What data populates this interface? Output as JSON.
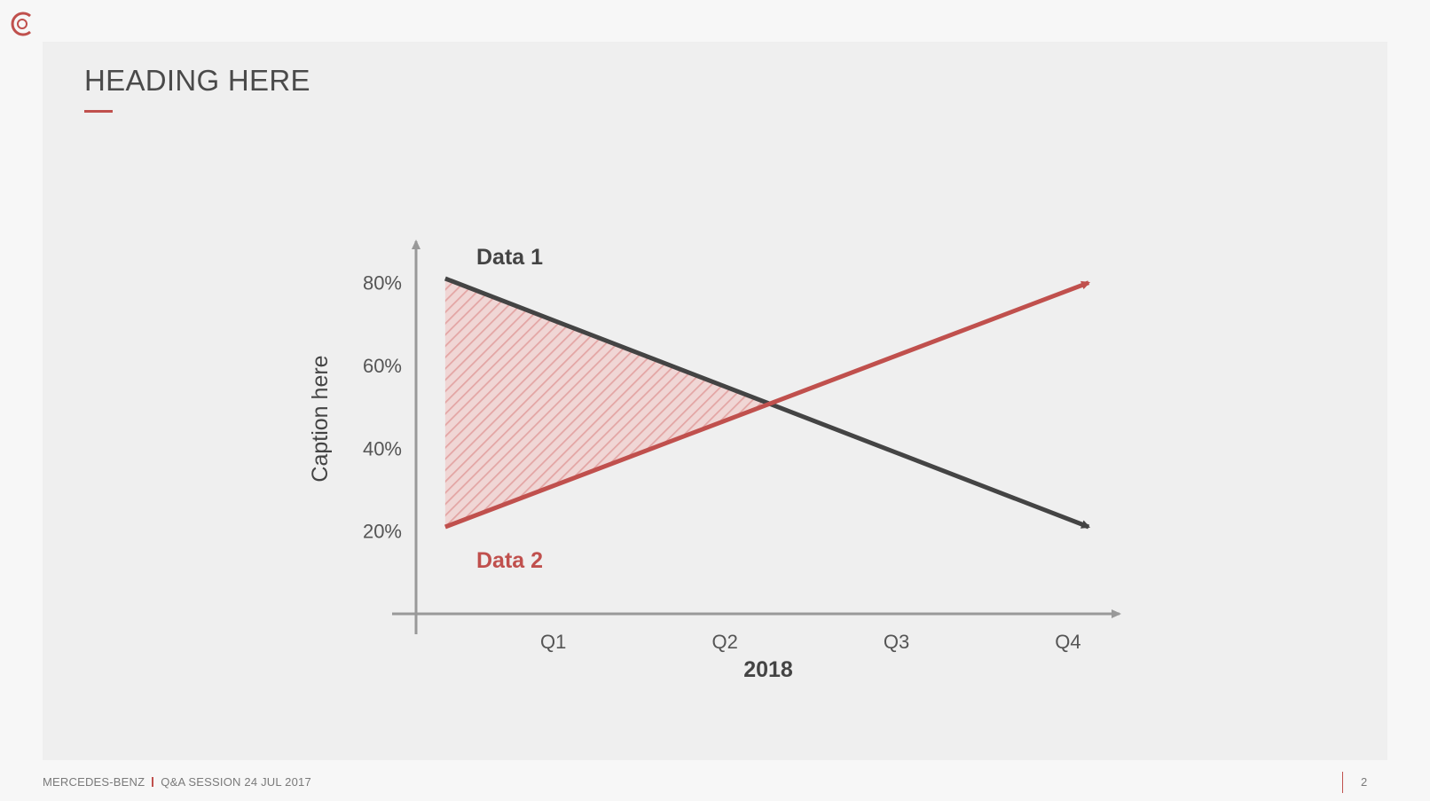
{
  "slide": {
    "heading": "HEADING HERE",
    "footer_company": "MERCEDES-BENZ",
    "footer_session": "Q&A SESSION 24 JUL 2017",
    "page_number": "2"
  },
  "colors": {
    "accent": "#c0504d",
    "dark_line": "#444444",
    "axis": "#999999",
    "text": "#4a4a4a",
    "hatch": "#e3a5a4"
  },
  "chart_data": {
    "type": "line",
    "title": "",
    "xlabel": "2018",
    "ylabel": "Caption here",
    "categories": [
      "Q1",
      "Q2",
      "Q3",
      "Q4"
    ],
    "yticks": [
      "80%",
      "60%",
      "40%",
      "20%"
    ],
    "ytick_values": [
      80,
      60,
      40,
      20
    ],
    "ylim": [
      0,
      90
    ],
    "x_domain": [
      0.2,
      4.3
    ],
    "grid": false,
    "series": [
      {
        "name": "Data 1",
        "color": "#444444",
        "x": [
          0.37,
          4.12
        ],
        "y": [
          81,
          21
        ]
      },
      {
        "name": "Data 2",
        "color": "#c0504d",
        "x": [
          0.37,
          4.12
        ],
        "y": [
          21,
          80
        ]
      }
    ],
    "shaded_region": {
      "between": [
        "Data 1",
        "Data 2"
      ],
      "x_from": 0.37,
      "to_intersection": true,
      "pattern": "diagonal-hatch"
    }
  }
}
